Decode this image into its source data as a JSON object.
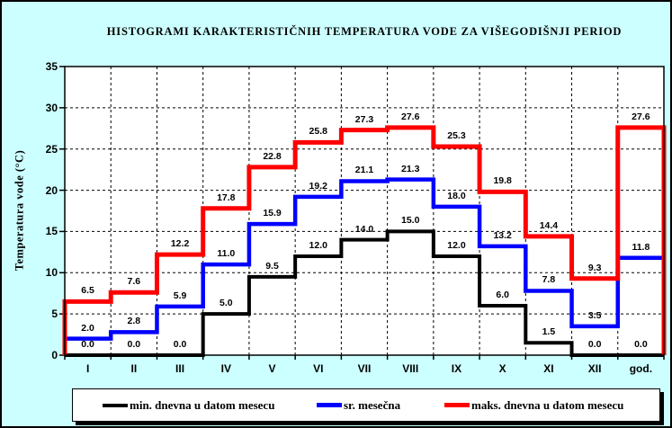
{
  "figure": {
    "background": "#ccffff",
    "plot_background": "#ffffff",
    "border_color": "#000000",
    "gridline_color": "#000000"
  },
  "chart_data": {
    "type": "line",
    "subtype": "step-histogram",
    "title": "HISTOGRAMI KARAKTERISTIČNIH TEMPERATURA VODE ZA VIŠEGODIŠNJI PERIOD",
    "xlabel": "",
    "ylabel": "Temperatura vode (°C)",
    "ylim": [
      0,
      35
    ],
    "yticks": [
      0,
      5,
      10,
      15,
      20,
      25,
      30,
      35
    ],
    "grid": true,
    "legend_position": "bottom",
    "categories": [
      "I",
      "II",
      "III",
      "IV",
      "V",
      "VI",
      "VII",
      "VIII",
      "IX",
      "X",
      "XI",
      "XII",
      "god."
    ],
    "series": [
      {
        "name": "min. dnevna u datom mesecu",
        "color": "#000000",
        "line_width": 4,
        "edge_drop": false,
        "values": [
          0.0,
          0.0,
          0.0,
          5.0,
          9.5,
          12.0,
          14.0,
          15.0,
          12.0,
          6.0,
          1.5,
          0.0,
          0.0
        ]
      },
      {
        "name": "sr. mesečna",
        "color": "#0000ff",
        "line_width": 4.5,
        "edge_drop": false,
        "values": [
          2.0,
          2.8,
          5.9,
          11.0,
          15.9,
          19.2,
          21.1,
          21.3,
          18.0,
          13.2,
          7.8,
          3.5,
          11.8
        ]
      },
      {
        "name": "maks. dnevna u datom mesecu",
        "color": "#ff0000",
        "line_width": 5,
        "edge_drop": true,
        "values": [
          6.5,
          7.6,
          12.2,
          17.8,
          22.8,
          25.8,
          27.3,
          27.6,
          25.3,
          19.8,
          14.4,
          9.3,
          27.6
        ]
      }
    ]
  }
}
